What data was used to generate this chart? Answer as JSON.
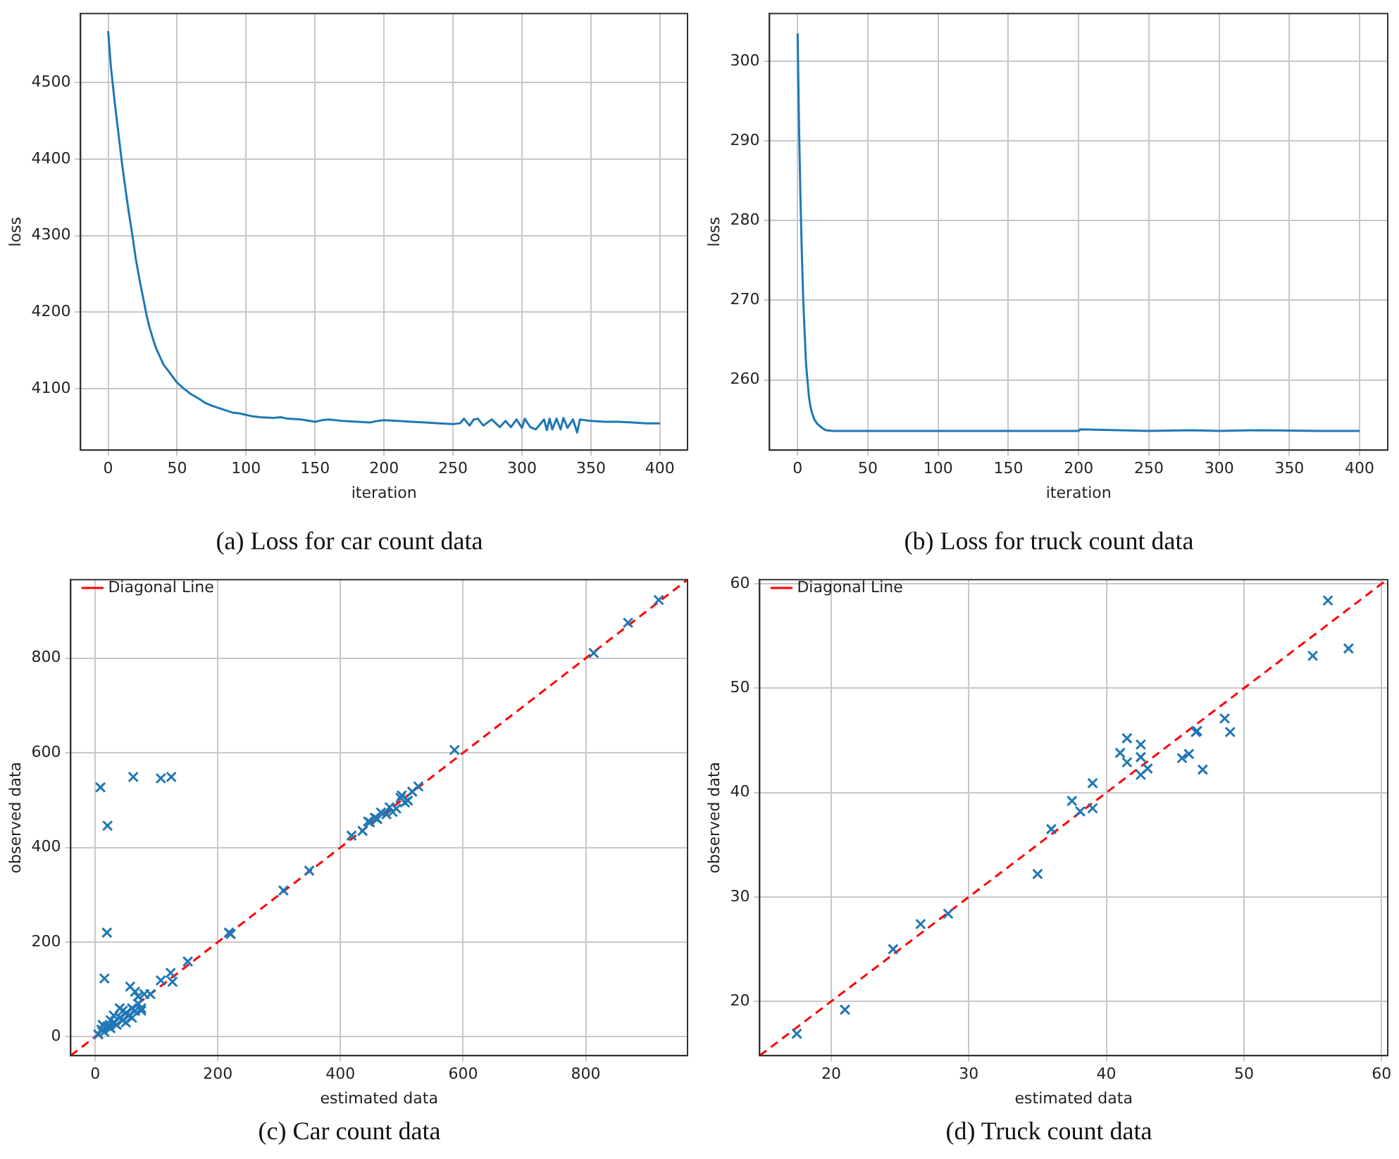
{
  "chart_data": [
    {
      "type": "line",
      "title": "(a) Loss for car count data",
      "xlabel": "iteration",
      "ylabel": "loss",
      "color": "#1f77b4",
      "grid": true,
      "x": [
        0,
        2,
        5,
        8,
        10,
        13,
        15,
        18,
        20,
        23,
        25,
        28,
        30,
        33,
        35,
        38,
        40,
        45,
        50,
        55,
        60,
        65,
        70,
        75,
        80,
        85,
        90,
        95,
        100,
        105,
        110,
        120,
        125,
        130,
        140,
        150,
        155,
        160,
        170,
        180,
        190,
        195,
        200,
        210,
        220,
        230,
        240,
        250,
        255,
        258,
        262,
        265,
        268,
        272,
        278,
        284,
        288,
        292,
        296,
        300,
        302,
        306,
        310,
        316,
        318,
        320,
        322,
        325,
        328,
        330,
        333,
        337,
        340,
        342,
        350,
        360,
        370,
        380,
        390,
        400
      ],
      "values": [
        4567,
        4520,
        4470,
        4425,
        4395,
        4355,
        4330,
        4295,
        4270,
        4240,
        4222,
        4195,
        4180,
        4162,
        4152,
        4140,
        4132,
        4120,
        4108,
        4100,
        4093,
        4088,
        4082,
        4078,
        4075,
        4072,
        4069,
        4068,
        4066,
        4064,
        4063,
        4062,
        4063,
        4061,
        4060,
        4057,
        4059,
        4060,
        4058,
        4057,
        4056,
        4058,
        4059,
        4058,
        4057,
        4056,
        4055,
        4054,
        4055,
        4061,
        4052,
        4060,
        4061,
        4052,
        4060,
        4050,
        4058,
        4050,
        4060,
        4049,
        4061,
        4050,
        4047,
        4060,
        4046,
        4061,
        4047,
        4061,
        4047,
        4062,
        4049,
        4060,
        4043,
        4060,
        4058,
        4057,
        4057,
        4056,
        4055,
        4055
      ],
      "xlim": [
        -20,
        420
      ],
      "ylim": [
        4020,
        4590
      ],
      "xticks": [
        0,
        50,
        100,
        150,
        200,
        250,
        300,
        350,
        400
      ],
      "yticks": [
        4100,
        4200,
        4300,
        4400,
        4500
      ]
    },
    {
      "type": "line",
      "title": "(b) Loss for truck count data",
      "xlabel": "iteration",
      "ylabel": "loss",
      "color": "#1f77b4",
      "grid": true,
      "x": [
        0,
        1,
        2,
        3,
        4,
        5,
        6,
        7,
        8,
        9,
        10,
        12,
        14,
        16,
        18,
        20,
        25,
        30,
        50,
        100,
        150,
        200,
        201,
        250,
        280,
        300,
        330,
        370,
        400
      ],
      "values": [
        303.5,
        292,
        283,
        276,
        270,
        266,
        262,
        260,
        258,
        256.8,
        256,
        255,
        254.5,
        254.2,
        253.9,
        253.7,
        253.6,
        253.6,
        253.6,
        253.6,
        253.6,
        253.6,
        253.8,
        253.6,
        253.7,
        253.6,
        253.7,
        253.6,
        253.6
      ],
      "xlim": [
        -20,
        420
      ],
      "ylim": [
        251.2,
        306
      ],
      "xticks": [
        0,
        50,
        100,
        150,
        200,
        250,
        300,
        350,
        400
      ],
      "yticks": [
        260,
        270,
        280,
        290,
        300
      ]
    },
    {
      "type": "scatter",
      "title": "(c) Car count data",
      "xlabel": "estimated data",
      "ylabel": "observed data",
      "grid": true,
      "legend": "top left",
      "xlim": [
        -40,
        966
      ],
      "ylim": [
        -40,
        966
      ],
      "xticks": [
        0,
        200,
        400,
        600,
        800
      ],
      "yticks": [
        0,
        200,
        400,
        600,
        800
      ],
      "series": [
        {
          "type": "scatter",
          "color": "#1f77b4",
          "marker": "cross",
          "x": [
            8.5,
            20,
            62,
            107,
            124,
            19,
            15,
            57,
            307,
            349,
            218,
            221,
            151,
            123,
            126,
            107,
            418,
            436,
            448,
            456,
            466,
            480,
            491,
            498,
            510,
            517,
            527,
            586,
            813,
            869,
            919,
            445,
            460,
            475,
            485,
            500,
            505,
            10,
            15,
            20,
            25,
            30,
            35,
            40,
            45,
            50,
            55,
            60,
            65,
            70,
            75,
            80,
            90,
            40,
            60,
            30,
            50,
            70,
            65,
            12,
            5,
            25,
            45,
            75
          ],
          "values": [
            527,
            446,
            549,
            546,
            549,
            220,
            123,
            106,
            309,
            351,
            220,
            217,
            159,
            135,
            116,
            119,
            425,
            435,
            453,
            463,
            474,
            485,
            482,
            505,
            499,
            518,
            529,
            606,
            811,
            875,
            923,
            455,
            460,
            470,
            475,
            510,
            495,
            15,
            10,
            22,
            18,
            30,
            25,
            40,
            35,
            50,
            45,
            60,
            55,
            70,
            60,
            90,
            90,
            60,
            40,
            45,
            30,
            85,
            95,
            25,
            5,
            35,
            55,
            55
          ]
        },
        {
          "type": "line",
          "name": "Diagonal Line",
          "color": "#ff0000",
          "line_style": "dashed",
          "x": [
            -40,
            966
          ],
          "values": [
            -40,
            966
          ]
        }
      ]
    },
    {
      "type": "scatter",
      "title": "(d) Truck count data",
      "xlabel": "estimated data",
      "ylabel": "observed data",
      "grid": true,
      "legend": "top left",
      "xlim": [
        14.8,
        60.45
      ],
      "ylim": [
        14.8,
        60.4
      ],
      "xticks": [
        20,
        30,
        40,
        50,
        60
      ],
      "yticks": [
        20,
        30,
        40,
        50,
        60
      ],
      "series": [
        {
          "type": "scatter",
          "color": "#1f77b4",
          "marker": "cross",
          "x": [
            17.5,
            21.0,
            24.5,
            26.5,
            28.5,
            35.0,
            36.0,
            37.5,
            38.1,
            39.0,
            39.0,
            41.0,
            41.5,
            41.5,
            42.5,
            42.5,
            42.5,
            43.0,
            45.5,
            46.0,
            46.5,
            46.6,
            47.0,
            48.6,
            49.0,
            55.0,
            56.1,
            57.6
          ],
          "values": [
            16.9,
            19.2,
            25.0,
            27.4,
            28.4,
            32.2,
            36.5,
            39.2,
            38.2,
            40.9,
            38.5,
            43.8,
            45.2,
            42.9,
            44.6,
            43.4,
            41.7,
            42.3,
            43.3,
            43.7,
            45.8,
            45.9,
            42.2,
            47.1,
            45.8,
            53.1,
            58.4,
            53.8
          ]
        },
        {
          "type": "line",
          "name": "Diagonal Line",
          "color": "#ff0000",
          "line_style": "dashed",
          "x": [
            14.8,
            60.4
          ],
          "values": [
            14.8,
            60.4
          ]
        }
      ]
    }
  ]
}
